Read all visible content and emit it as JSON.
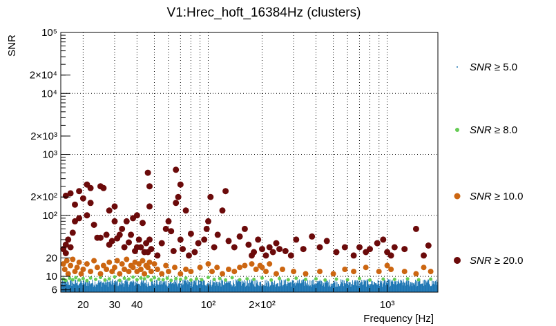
{
  "chart_data": {
    "type": "scatter",
    "title": "V1:Hrec_hoft_16384Hz (clusters)",
    "xlabel": "Frequency [Hz]",
    "ylabel": "SNR",
    "xscale": "log",
    "yscale": "log",
    "xlim": [
      15,
      1920
    ],
    "ylim": [
      5.5,
      100000
    ],
    "grid": true,
    "legend_position": "right",
    "x_ticks": [
      {
        "value": 20,
        "label": "20"
      },
      {
        "value": 30,
        "label": "30"
      },
      {
        "value": 40,
        "label": "40"
      },
      {
        "value": 100,
        "label": "10²"
      },
      {
        "value": 200,
        "label": "2×10²"
      },
      {
        "value": 1000,
        "label": "10³"
      }
    ],
    "y_ticks": [
      {
        "value": 6,
        "label": "6"
      },
      {
        "value": 10,
        "label": "10"
      },
      {
        "value": 20,
        "label": "20"
      },
      {
        "value": 100,
        "label": "10²"
      },
      {
        "value": 200,
        "label": "2×10²"
      },
      {
        "value": 1000,
        "label": "10³"
      },
      {
        "value": 2000,
        "label": "2×10³"
      },
      {
        "value": 10000,
        "label": "10⁴"
      },
      {
        "value": 20000,
        "label": "2×10⁴"
      },
      {
        "value": 100000,
        "label": "10⁵"
      }
    ],
    "series": [
      {
        "name": "SNR ≥ 5.0",
        "color": "#1f77b4",
        "marker": "dot",
        "band": {
          "x": [
            15,
            1920
          ],
          "snr": [
            5.5,
            9
          ]
        }
      },
      {
        "name": "SNR ≥ 8.0",
        "color": "#66cc55",
        "marker": "small-circle",
        "points": [
          [
            15.5,
            9
          ],
          [
            16,
            8.6
          ],
          [
            16.8,
            9.3
          ],
          [
            17.5,
            8.8
          ],
          [
            18.2,
            9.5
          ],
          [
            19,
            8.7
          ],
          [
            20,
            9.2
          ],
          [
            21,
            8.5
          ],
          [
            22,
            9.4
          ],
          [
            23.5,
            8.9
          ],
          [
            25,
            9.6
          ],
          [
            26.5,
            8.7
          ],
          [
            28,
            9.1
          ],
          [
            30,
            9.8
          ],
          [
            32,
            8.6
          ],
          [
            34,
            9.3
          ],
          [
            36,
            9.0
          ],
          [
            38,
            9.7
          ],
          [
            40,
            8.8
          ],
          [
            42,
            9.4
          ],
          [
            44,
            9.1
          ],
          [
            46,
            9.9
          ],
          [
            48,
            8.7
          ],
          [
            50,
            9.5
          ],
          [
            53,
            9.0
          ],
          [
            56,
            8.8
          ],
          [
            59,
            9.3
          ],
          [
            62,
            8.6
          ],
          [
            66,
            9.2
          ],
          [
            70,
            8.9
          ],
          [
            75,
            9.4
          ],
          [
            80,
            8.7
          ],
          [
            86,
            9.1
          ],
          [
            92,
            8.8
          ],
          [
            100,
            9.6
          ],
          [
            108,
            8.9
          ],
          [
            116,
            9.2
          ],
          [
            125,
            8.7
          ],
          [
            136,
            9.5
          ],
          [
            150,
            8.8
          ],
          [
            165,
            9.1
          ],
          [
            180,
            8.9
          ],
          [
            200,
            9.4
          ],
          [
            225,
            8.7
          ],
          [
            250,
            9.2
          ],
          [
            280,
            8.8
          ],
          [
            310,
            9.3
          ],
          [
            350,
            8.9
          ],
          [
            400,
            9.1
          ],
          [
            450,
            8.7
          ],
          [
            520,
            9.0
          ],
          [
            600,
            8.8
          ],
          [
            700,
            9.2
          ],
          [
            800,
            8.7
          ],
          [
            950,
            9.0
          ],
          [
            1100,
            8.9
          ],
          [
            1300,
            9.1
          ],
          [
            1500,
            8.8
          ],
          [
            1750,
            9.0
          ]
        ]
      },
      {
        "name": "SNR ≥ 10.0",
        "color": "#cc6611",
        "marker": "circle",
        "points": [
          [
            15.5,
            16
          ],
          [
            15.8,
            13
          ],
          [
            16.2,
            18
          ],
          [
            16.5,
            11
          ],
          [
            17,
            15
          ],
          [
            17.5,
            19
          ],
          [
            18,
            12
          ],
          [
            18.5,
            14
          ],
          [
            19,
            17
          ],
          [
            19.5,
            11
          ],
          [
            20,
            13
          ],
          [
            21,
            16
          ],
          [
            22,
            12
          ],
          [
            23,
            18
          ],
          [
            24,
            14
          ],
          [
            25,
            11
          ],
          [
            26,
            15
          ],
          [
            27,
            13
          ],
          [
            28,
            17
          ],
          [
            29,
            12
          ],
          [
            30,
            14
          ],
          [
            31,
            18
          ],
          [
            32,
            11
          ],
          [
            33,
            16
          ],
          [
            34,
            13
          ],
          [
            35,
            19
          ],
          [
            36,
            12
          ],
          [
            37,
            15
          ],
          [
            38,
            14
          ],
          [
            39,
            17
          ],
          [
            40,
            12
          ],
          [
            41,
            16
          ],
          [
            42,
            13
          ],
          [
            43,
            18
          ],
          [
            44,
            11
          ],
          [
            45,
            15
          ],
          [
            46,
            14
          ],
          [
            47,
            17
          ],
          [
            48,
            12
          ],
          [
            50,
            16
          ],
          [
            52,
            13
          ],
          [
            55,
            11
          ],
          [
            58,
            15
          ],
          [
            60,
            12
          ],
          [
            65,
            14
          ],
          [
            70,
            11
          ],
          [
            75,
            13
          ],
          [
            80,
            12
          ],
          [
            90,
            14
          ],
          [
            100,
            16
          ],
          [
            105,
            12
          ],
          [
            112,
            14
          ],
          [
            120,
            11
          ],
          [
            130,
            13
          ],
          [
            140,
            12
          ],
          [
            150,
            14
          ],
          [
            160,
            15
          ],
          [
            175,
            16
          ],
          [
            185,
            13
          ],
          [
            195,
            15
          ],
          [
            200,
            14
          ],
          [
            210,
            12
          ],
          [
            220,
            16
          ],
          [
            240,
            11
          ],
          [
            260,
            13
          ],
          [
            300,
            12
          ],
          [
            350,
            11
          ],
          [
            420,
            12
          ],
          [
            500,
            11
          ],
          [
            580,
            13
          ],
          [
            650,
            12
          ],
          [
            760,
            14
          ],
          [
            900,
            12
          ],
          [
            1000,
            15
          ],
          [
            1050,
            13
          ],
          [
            1250,
            12
          ],
          [
            1450,
            11
          ],
          [
            1600,
            14
          ],
          [
            1750,
            12
          ]
        ]
      },
      {
        "name": "SNR ≥ 20.0",
        "color": "#6b0a0a",
        "marker": "large-circle",
        "points": [
          [
            15.5,
            28
          ],
          [
            16,
            33
          ],
          [
            16.5,
            40
          ],
          [
            16,
            24
          ],
          [
            17,
            30
          ],
          [
            17,
            230
          ],
          [
            16,
            210
          ],
          [
            17.5,
            52
          ],
          [
            18,
            80
          ],
          [
            18,
            150
          ],
          [
            19,
            90
          ],
          [
            19,
            250
          ],
          [
            20,
            190
          ],
          [
            21,
            100
          ],
          [
            21,
            320
          ],
          [
            22,
            160
          ],
          [
            22,
            280
          ],
          [
            23,
            70
          ],
          [
            24,
            43
          ],
          [
            25,
            300
          ],
          [
            25,
            43
          ],
          [
            26,
            280
          ],
          [
            27,
            48
          ],
          [
            28,
            33
          ],
          [
            28,
            120
          ],
          [
            29,
            38
          ],
          [
            30,
            140
          ],
          [
            30,
            80
          ],
          [
            31,
            42
          ],
          [
            32,
            48
          ],
          [
            33,
            60
          ],
          [
            34,
            30
          ],
          [
            35,
            80
          ],
          [
            36,
            36
          ],
          [
            37,
            48
          ],
          [
            38,
            90
          ],
          [
            39,
            26
          ],
          [
            40,
            30
          ],
          [
            40,
            100
          ],
          [
            41,
            40
          ],
          [
            42,
            30
          ],
          [
            43,
            75
          ],
          [
            44,
            25
          ],
          [
            45,
            35
          ],
          [
            46,
            500
          ],
          [
            46,
            25
          ],
          [
            47,
            40
          ],
          [
            47,
            300
          ],
          [
            48,
            28
          ],
          [
            47,
            140
          ],
          [
            52,
            22
          ],
          [
            55,
            35
          ],
          [
            58,
            60
          ],
          [
            60,
            80
          ],
          [
            62,
            55
          ],
          [
            64,
            26
          ],
          [
            66,
            160
          ],
          [
            66,
            560
          ],
          [
            68,
            200
          ],
          [
            70,
            40
          ],
          [
            70,
            320
          ],
          [
            72,
            28
          ],
          [
            75,
            120
          ],
          [
            78,
            22
          ],
          [
            80,
            50
          ],
          [
            84,
            25
          ],
          [
            88,
            35
          ],
          [
            95,
            40
          ],
          [
            98,
            60
          ],
          [
            100,
            80
          ],
          [
            103,
            200
          ],
          [
            108,
            30
          ],
          [
            113,
            48
          ],
          [
            120,
            120
          ],
          [
            125,
            250
          ],
          [
            130,
            38
          ],
          [
            140,
            30
          ],
          [
            150,
            45
          ],
          [
            160,
            60
          ],
          [
            168,
            33
          ],
          [
            175,
            22
          ],
          [
            180,
            25
          ],
          [
            190,
            40
          ],
          [
            200,
            28
          ],
          [
            210,
            22
          ],
          [
            220,
            30
          ],
          [
            230,
            25
          ],
          [
            240,
            35
          ],
          [
            250,
            28
          ],
          [
            270,
            26
          ],
          [
            290,
            22
          ],
          [
            310,
            40
          ],
          [
            340,
            28
          ],
          [
            380,
            45
          ],
          [
            420,
            30
          ],
          [
            460,
            38
          ],
          [
            520,
            25
          ],
          [
            580,
            30
          ],
          [
            650,
            22
          ],
          [
            700,
            30
          ],
          [
            760,
            25
          ],
          [
            800,
            28
          ],
          [
            880,
            35
          ],
          [
            950,
            40
          ],
          [
            1000,
            25
          ],
          [
            1050,
            22
          ],
          [
            1100,
            30
          ],
          [
            1250,
            28
          ],
          [
            1450,
            60
          ],
          [
            1600,
            22
          ],
          [
            1700,
            32
          ]
        ]
      }
    ]
  }
}
